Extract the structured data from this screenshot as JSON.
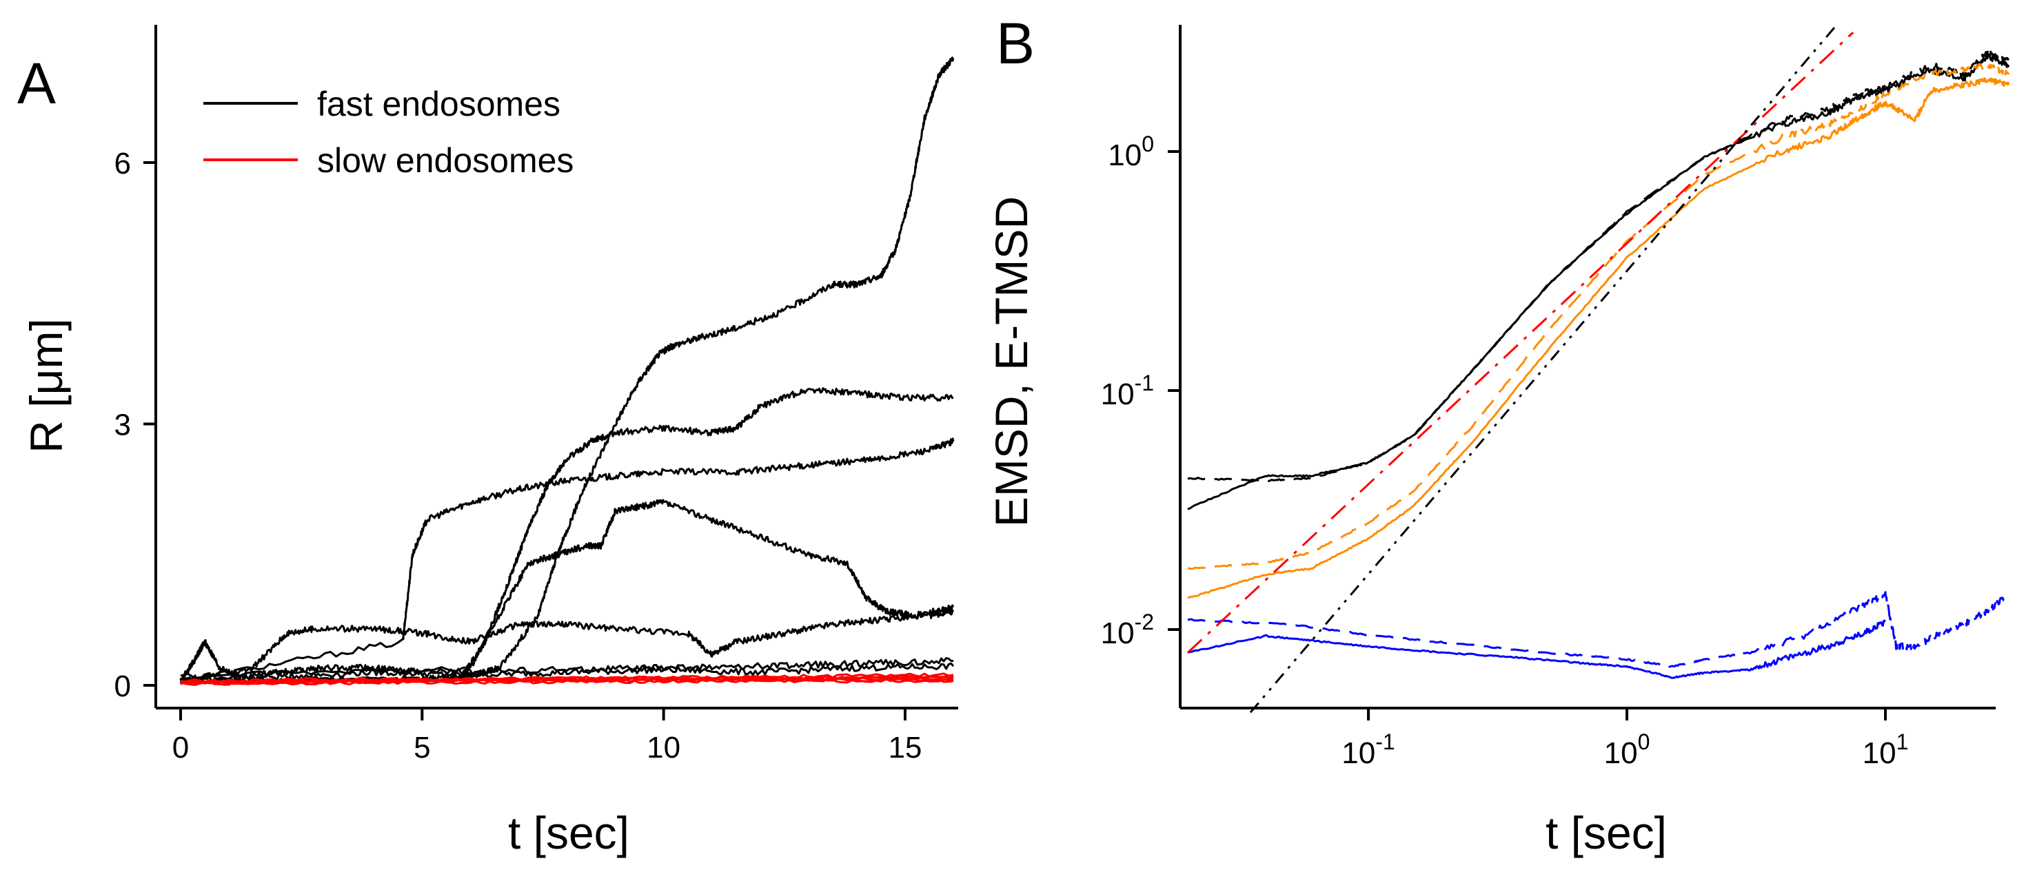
{
  "chart_data": [
    {
      "panel_label": "A",
      "type": "line",
      "title": "",
      "xlabel": "t [sec]",
      "ylabel": "R [μm]",
      "xlim": [
        -0.3,
        16.2
      ],
      "ylim": [
        -0.2,
        7.5
      ],
      "xticks": [
        0,
        5,
        10,
        15
      ],
      "xtick_labels": [
        "0",
        "5",
        "10",
        "15"
      ],
      "yticks": [
        0,
        3,
        6
      ],
      "ytick_labels": [
        "0",
        "3",
        "6"
      ],
      "legend": {
        "placement": "top-left",
        "entries": [
          {
            "label": "fast endosomes",
            "color": "#000000"
          },
          {
            "label": "slow endosomes",
            "color": "#ff0000"
          }
        ]
      },
      "series": [
        {
          "name": "fast endosome 1",
          "color": "#000000",
          "t": [
            0,
            2,
            5,
            5.9,
            6.3,
            6.6,
            7.4,
            7.8,
            8.3,
            9,
            9.5,
            9.9,
            10.2,
            10.8,
            11.5,
            12.5,
            13.5,
            14,
            14.5,
            14.8,
            15.1,
            15.4,
            15.7,
            16
          ],
          "r": [
            0.05,
            0.06,
            0.08,
            0.1,
            0.15,
            0.2,
            0.8,
            1.5,
            2.2,
            3.0,
            3.5,
            3.8,
            3.9,
            4.0,
            4.1,
            4.3,
            4.6,
            4.6,
            4.7,
            5.0,
            5.6,
            6.5,
            7.0,
            7.2
          ]
        },
        {
          "name": "fast endosome 2",
          "color": "#000000",
          "t": [
            0,
            4.6,
            4.8,
            5.1,
            6,
            7,
            8,
            9,
            10,
            11.5,
            12.5,
            13.5,
            14.5,
            15.5,
            16
          ],
          "r": [
            0.05,
            0.5,
            1.5,
            1.9,
            2.1,
            2.25,
            2.35,
            2.4,
            2.45,
            2.45,
            2.5,
            2.55,
            2.6,
            2.7,
            2.8
          ]
        },
        {
          "name": "fast endosome 3",
          "color": "#000000",
          "t": [
            0,
            5.8,
            6.3,
            6.8,
            7.2,
            7.6,
            8,
            8.5,
            9,
            10,
            11,
            11.5,
            12,
            13,
            14,
            15,
            16
          ],
          "r": [
            0.05,
            0.08,
            0.5,
            1.2,
            1.8,
            2.3,
            2.6,
            2.8,
            2.9,
            2.95,
            2.9,
            2.95,
            3.2,
            3.4,
            3.35,
            3.3,
            3.3
          ]
        },
        {
          "name": "fast endosome 4",
          "color": "#000000",
          "t": [
            0,
            6,
            6.6,
            7.2,
            7.8,
            8.4,
            8.7,
            9,
            9.5,
            10,
            11,
            12,
            13,
            13.8,
            14.2,
            14.6,
            15.2,
            16
          ],
          "r": [
            0.1,
            0.2,
            0.8,
            1.4,
            1.5,
            1.6,
            1.6,
            2.0,
            2.05,
            2.1,
            1.9,
            1.7,
            1.5,
            1.4,
            1.0,
            0.85,
            0.8,
            0.9
          ]
        },
        {
          "name": "fast endosome 5",
          "color": "#000000",
          "t": [
            0,
            1.5,
            2.2,
            2.8,
            4,
            5,
            6,
            7,
            8,
            9,
            10.5,
            11,
            11.5,
            12.5,
            13.5,
            14.5,
            15.5,
            16
          ],
          "r": [
            0.05,
            0.2,
            0.6,
            0.65,
            0.65,
            0.6,
            0.5,
            0.7,
            0.7,
            0.65,
            0.6,
            0.35,
            0.5,
            0.6,
            0.7,
            0.75,
            0.8,
            0.85
          ]
        },
        {
          "name": "fast endosome 6",
          "color": "#000000",
          "t": [
            0,
            0.3,
            0.5,
            0.8,
            1.2,
            2,
            3,
            4,
            5,
            8,
            10,
            12,
            14,
            16
          ],
          "r": [
            0.05,
            0.3,
            0.5,
            0.2,
            0.1,
            0.15,
            0.2,
            0.2,
            0.15,
            0.18,
            0.2,
            0.22,
            0.25,
            0.28
          ]
        },
        {
          "name": "fast endosome 7",
          "color": "#000000",
          "t": [
            0,
            2,
            4,
            6,
            8,
            10,
            12,
            14,
            16
          ],
          "r": [
            0.05,
            0.1,
            0.15,
            0.12,
            0.15,
            0.18,
            0.15,
            0.2,
            0.22
          ]
        },
        {
          "name": "slow endosome 1",
          "color": "#ff0000",
          "t": [
            0,
            4,
            8,
            12,
            16
          ],
          "r": [
            0.02,
            0.05,
            0.08,
            0.1,
            0.12
          ]
        },
        {
          "name": "slow endosome 2",
          "color": "#ff0000",
          "t": [
            0,
            4,
            8,
            12,
            16
          ],
          "r": [
            0.03,
            0.06,
            0.05,
            0.07,
            0.06
          ]
        },
        {
          "name": "slow endosome 3",
          "color": "#ff0000",
          "t": [
            0,
            4,
            8,
            12,
            16
          ],
          "r": [
            0.04,
            0.05,
            0.09,
            0.08,
            0.1
          ]
        },
        {
          "name": "slow endosome 4",
          "color": "#ff0000",
          "t": [
            0,
            4,
            8,
            12,
            16
          ],
          "r": [
            0.02,
            0.03,
            0.04,
            0.05,
            0.05
          ]
        },
        {
          "name": "slow endosome 5",
          "color": "#ff0000",
          "t": [
            0,
            4,
            8,
            12,
            16
          ],
          "r": [
            0.05,
            0.07,
            0.06,
            0.09,
            0.08
          ]
        },
        {
          "name": "slow endosome 6",
          "color": "#ff0000",
          "t": [
            0,
            4,
            8,
            12,
            16
          ],
          "r": [
            0.03,
            0.04,
            0.07,
            0.06,
            0.09
          ]
        }
      ]
    },
    {
      "panel_label": "B",
      "type": "line",
      "scale": "log-log",
      "title": "",
      "xlabel": "t [sec]",
      "ylabel": "EMSD, E-TMSD",
      "xlim": [
        0.02,
        35
      ],
      "ylim": [
        0.005,
        3.4
      ],
      "xticks": [
        0.1,
        1,
        10
      ],
      "xtick_labels": [
        {
          "base": "10",
          "exp": "-1"
        },
        {
          "base": "10",
          "exp": "0"
        },
        {
          "base": "10",
          "exp": "1"
        }
      ],
      "yticks": [
        0.01,
        0.1,
        1
      ],
      "ytick_labels": [
        {
          "base": "10",
          "exp": "-2"
        },
        {
          "base": "10",
          "exp": "-1"
        },
        {
          "base": "10",
          "exp": "0"
        }
      ],
      "series": [
        {
          "name": "black solid",
          "color": "#000000",
          "dash": "solid",
          "x": [
            0.02,
            0.04,
            0.06,
            0.1,
            0.15,
            0.25,
            0.5,
            1,
            2,
            4,
            6,
            8,
            10,
            15,
            20,
            25,
            30
          ],
          "y": [
            0.032,
            0.044,
            0.044,
            0.05,
            0.065,
            0.12,
            0.28,
            0.55,
            0.95,
            1.3,
            1.45,
            1.7,
            1.8,
            2.2,
            2.0,
            2.5,
            2.3
          ]
        },
        {
          "name": "black dashed",
          "color": "#000000",
          "dash": "dashed",
          "x": [
            0.02,
            0.04,
            0.06,
            0.1,
            0.15,
            0.25,
            0.5,
            1,
            2,
            4,
            6,
            8,
            10,
            15,
            20,
            25,
            30
          ],
          "y": [
            0.043,
            0.042,
            0.043,
            0.05,
            0.065,
            0.12,
            0.28,
            0.56,
            0.95,
            1.35,
            1.5,
            1.75,
            1.85,
            2.3,
            2.1,
            2.6,
            2.4
          ]
        },
        {
          "name": "orange solid",
          "color": "#ff8c00",
          "dash": "solid",
          "x": [
            0.02,
            0.04,
            0.06,
            0.1,
            0.15,
            0.25,
            0.5,
            1,
            2,
            4,
            6,
            8,
            10,
            13,
            15,
            20,
            25,
            30
          ],
          "y": [
            0.0135,
            0.017,
            0.018,
            0.024,
            0.033,
            0.06,
            0.15,
            0.36,
            0.7,
            1.0,
            1.15,
            1.4,
            1.6,
            1.35,
            1.8,
            1.9,
            2.0,
            1.9
          ]
        },
        {
          "name": "orange dashed",
          "color": "#ff8c00",
          "dash": "dashed",
          "x": [
            0.02,
            0.04,
            0.06,
            0.1,
            0.15,
            0.25,
            0.5,
            1,
            2,
            4,
            6,
            8,
            10,
            15,
            20,
            25,
            30
          ],
          "y": [
            0.018,
            0.019,
            0.021,
            0.028,
            0.038,
            0.07,
            0.18,
            0.42,
            0.8,
            1.15,
            1.3,
            1.5,
            1.75,
            2.1,
            2.2,
            2.3,
            2.1
          ]
        },
        {
          "name": "blue solid",
          "color": "#0000ff",
          "dash": "solid",
          "x": [
            0.02,
            0.04,
            0.06,
            0.1,
            0.2,
            0.4,
            0.7,
            1,
            1.5,
            2,
            3,
            4,
            6,
            8,
            10
          ],
          "y": [
            0.008,
            0.0094,
            0.009,
            0.0085,
            0.008,
            0.0076,
            0.0072,
            0.007,
            0.0063,
            0.0066,
            0.0068,
            0.0075,
            0.0085,
            0.0095,
            0.0108
          ]
        },
        {
          "name": "blue dashed",
          "color": "#0000ff",
          "dash": "dashed",
          "x": [
            0.02,
            0.05,
            0.1,
            0.2,
            0.5,
            1,
            1.5,
            2,
            3,
            5,
            8,
            10,
            11,
            13,
            16,
            20,
            25,
            30
          ],
          "y": [
            0.011,
            0.0105,
            0.0095,
            0.0088,
            0.008,
            0.0075,
            0.007,
            0.0075,
            0.008,
            0.0095,
            0.0125,
            0.014,
            0.0085,
            0.0085,
            0.0095,
            0.0105,
            0.012,
            0.014
          ]
        },
        {
          "name": "red dash-dot fit",
          "color": "#ff0000",
          "dash": "dash-dot",
          "x": [
            0.02,
            7.5
          ],
          "y": [
            0.008,
            3.15
          ]
        },
        {
          "name": "black dash-dot-dot fit",
          "color": "#000000",
          "dash": "dash-dot-dot",
          "x": [
            0.035,
            6.5
          ],
          "y": [
            0.0045,
            3.4
          ]
        }
      ]
    }
  ]
}
